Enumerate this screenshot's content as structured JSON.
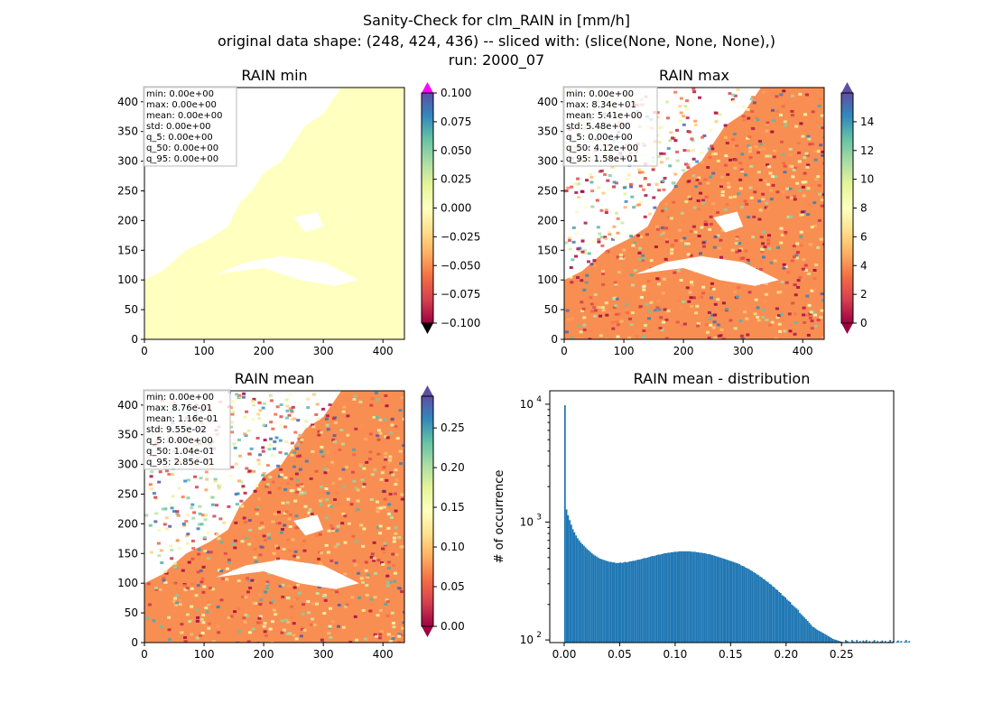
{
  "figure": {
    "suptitle_lines": [
      "Sanity-Check for clm_RAIN in [mm/h]",
      "original data shape: (248, 424, 436) -- sliced with: (slice(None, None, None),)",
      "run: 2000_07"
    ]
  },
  "colors": {
    "spectral": [
      "#9e0142",
      "#d53e4f",
      "#f46d43",
      "#fdae61",
      "#fee08b",
      "#ffffbf",
      "#e6f598",
      "#abdda4",
      "#66c2a5",
      "#3288bd",
      "#5e4fa2"
    ],
    "hist_bar": "#1f77b4",
    "over_min": "#ff00ff",
    "under_min": "#000000"
  },
  "chart_data": [
    {
      "type": "heatmap",
      "title": "RAIN min",
      "xlim": [
        0,
        436
      ],
      "ylim": [
        0,
        424
      ],
      "xticks": [
        0,
        100,
        200,
        300,
        400
      ],
      "yticks": [
        0,
        50,
        100,
        150,
        200,
        250,
        300,
        350,
        400
      ],
      "colorbar": {
        "vmin": -0.1,
        "vmax": 0.1,
        "ticks": [
          "0.100",
          "0.075",
          "0.050",
          "0.025",
          "0.000",
          "−0.025",
          "−0.050",
          "−0.075",
          "−0.100"
        ],
        "extend": "both"
      },
      "stats": [
        "min: 0.00e+00",
        "max: 0.00e+00",
        "mean: 0.00e+00",
        "std: 0.00e+00",
        "q_5: 0.00e+00",
        "q_50: 0.00e+00",
        "q_95: 0.00e+00"
      ],
      "field": "uniform"
    },
    {
      "type": "heatmap",
      "title": "RAIN max",
      "xlim": [
        0,
        436
      ],
      "ylim": [
        0,
        424
      ],
      "xticks": [
        0,
        100,
        200,
        300,
        400
      ],
      "yticks": [
        0,
        50,
        100,
        150,
        200,
        250,
        300,
        350,
        400
      ],
      "colorbar": {
        "vmin": 0,
        "vmax": 16,
        "ticks": [
          "14",
          "12",
          "10",
          "8",
          "6",
          "4",
          "2",
          "0"
        ],
        "extend": "both"
      },
      "stats": [
        "min: 0.00e+00",
        "max: 8.34e+01",
        "mean: 5.41e+00",
        "std: 5.48e+00",
        "q_5: 0.00e+00",
        "q_50: 4.12e+00",
        "q_95: 1.58e+01"
      ],
      "field": "noise"
    },
    {
      "type": "heatmap",
      "title": "RAIN mean",
      "xlim": [
        0,
        436
      ],
      "ylim": [
        0,
        424
      ],
      "xticks": [
        0,
        100,
        200,
        300,
        400
      ],
      "yticks": [
        0,
        50,
        100,
        150,
        200,
        250,
        300,
        350,
        400
      ],
      "colorbar": {
        "vmin": 0,
        "vmax": 0.29,
        "ticks": [
          "0.25",
          "0.20",
          "0.15",
          "0.10",
          "0.05",
          "0.00"
        ],
        "extend": "both"
      },
      "stats": [
        "min: 0.00e+00",
        "max: 8.76e-01",
        "mean: 1.16e-01",
        "std: 9.55e-02",
        "q_5: 0.00e+00",
        "q_50: 1.04e-01",
        "q_95: 2.85e-01"
      ],
      "field": "noise"
    },
    {
      "type": "bar",
      "title": "RAIN mean - distribution",
      "ylabel": "# of occurrence",
      "xlabel": "",
      "yscale": "log",
      "xlim": [
        -0.013,
        0.297
      ],
      "ylim": [
        95,
        13000
      ],
      "xticks": [
        "0.00",
        "0.05",
        "0.10",
        "0.15",
        "0.20",
        "0.25"
      ],
      "yticks": [
        "10^2",
        "10^3",
        "10^4"
      ],
      "bin_width": 0.00143,
      "bins_start": 0.0,
      "counts": [
        9800,
        1280,
        1140,
        1040,
        950,
        870,
        820,
        770,
        730,
        700,
        670,
        650,
        630,
        610,
        590,
        575,
        560,
        545,
        530,
        520,
        510,
        500,
        490,
        485,
        480,
        475,
        470,
        465,
        460,
        460,
        455,
        455,
        450,
        450,
        450,
        455,
        450,
        455,
        460,
        455,
        460,
        465,
        465,
        470,
        470,
        475,
        480,
        480,
        485,
        490,
        495,
        495,
        500,
        505,
        510,
        515,
        515,
        520,
        525,
        530,
        530,
        535,
        540,
        545,
        545,
        550,
        550,
        555,
        555,
        560,
        560,
        560,
        565,
        565,
        565,
        565,
        565,
        565,
        565,
        565,
        560,
        560,
        560,
        555,
        555,
        550,
        550,
        545,
        545,
        540,
        535,
        535,
        530,
        525,
        520,
        515,
        510,
        505,
        500,
        495,
        490,
        485,
        480,
        475,
        470,
        465,
        460,
        455,
        450,
        445,
        440,
        430,
        425,
        420,
        410,
        405,
        400,
        390,
        385,
        375,
        370,
        360,
        355,
        345,
        340,
        330,
        325,
        315,
        310,
        300,
        295,
        285,
        280,
        270,
        265,
        255,
        250,
        240,
        235,
        230,
        220,
        215,
        210,
        200,
        195,
        190,
        185,
        180,
        170,
        165,
        160,
        155,
        150,
        145,
        140,
        135,
        130,
        128,
        125,
        122,
        120,
        118,
        116,
        114,
        112,
        110,
        108,
        106,
        104,
        102,
        101,
        100,
        99,
        98,
        97,
        96,
        95,
        100,
        98,
        96,
        95,
        100,
        97,
        95,
        100,
        96,
        98,
        95,
        99,
        97,
        100,
        96,
        98,
        95,
        97,
        100,
        96,
        98,
        95,
        97,
        99,
        96,
        98,
        95,
        97,
        100,
        96,
        98,
        95,
        97,
        99,
        96,
        98,
        95,
        97,
        100,
        96,
        98
      ]
    }
  ]
}
